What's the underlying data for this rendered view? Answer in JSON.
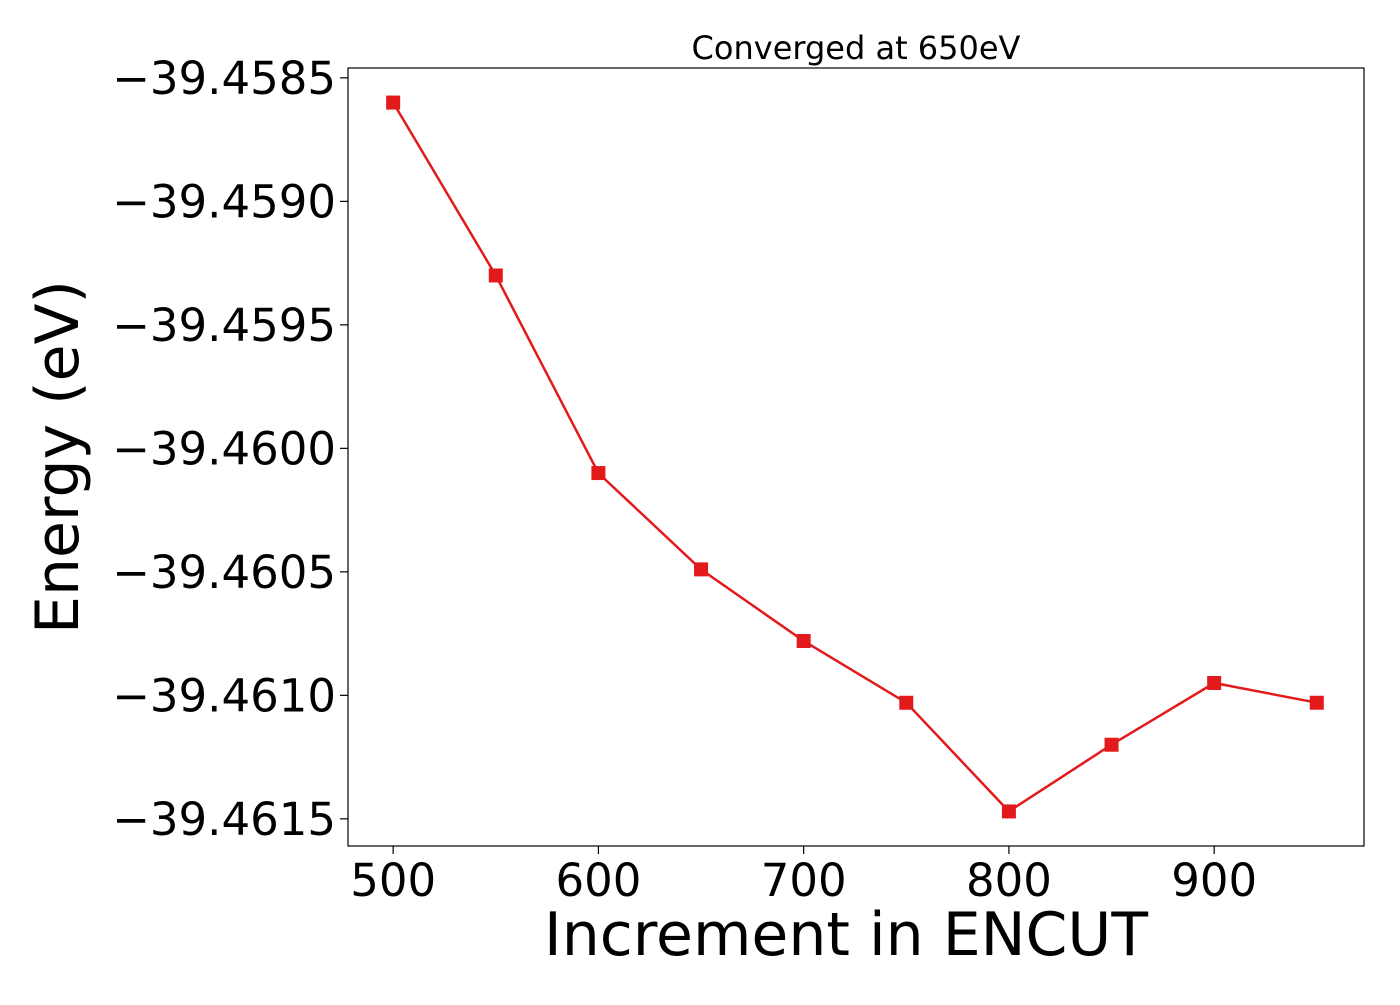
{
  "chart_data": {
    "type": "line",
    "title": "Converged at 650eV",
    "xlabel": "Increment in ENCUT",
    "ylabel": "Energy (eV)",
    "x": [
      500,
      550,
      600,
      650,
      700,
      750,
      800,
      850,
      900,
      950
    ],
    "series": [
      {
        "values": [
          -39.4586,
          -39.4593,
          -39.4601,
          -39.46049,
          -39.46078,
          -39.46103,
          -39.46147,
          -39.4612,
          -39.46095,
          -39.46103
        ],
        "color": "#e31a1c",
        "marker": "square"
      }
    ],
    "xlim": [
      478,
      973
    ],
    "ylim": [
      -39.46161,
      -39.45846
    ],
    "xticks": [
      500,
      600,
      700,
      800,
      900
    ],
    "xtick_labels": [
      "500",
      "600",
      "700",
      "800",
      "900"
    ],
    "yticks": [
      -39.4585,
      -39.459,
      -39.4595,
      -39.46,
      -39.4605,
      -39.461,
      -39.4615
    ],
    "ytick_labels": [
      "−39.4585",
      "−39.4590",
      "−39.4595",
      "−39.4600",
      "−39.4605",
      "−39.4610",
      "−39.4615"
    ],
    "grid": false,
    "legend": "none"
  }
}
